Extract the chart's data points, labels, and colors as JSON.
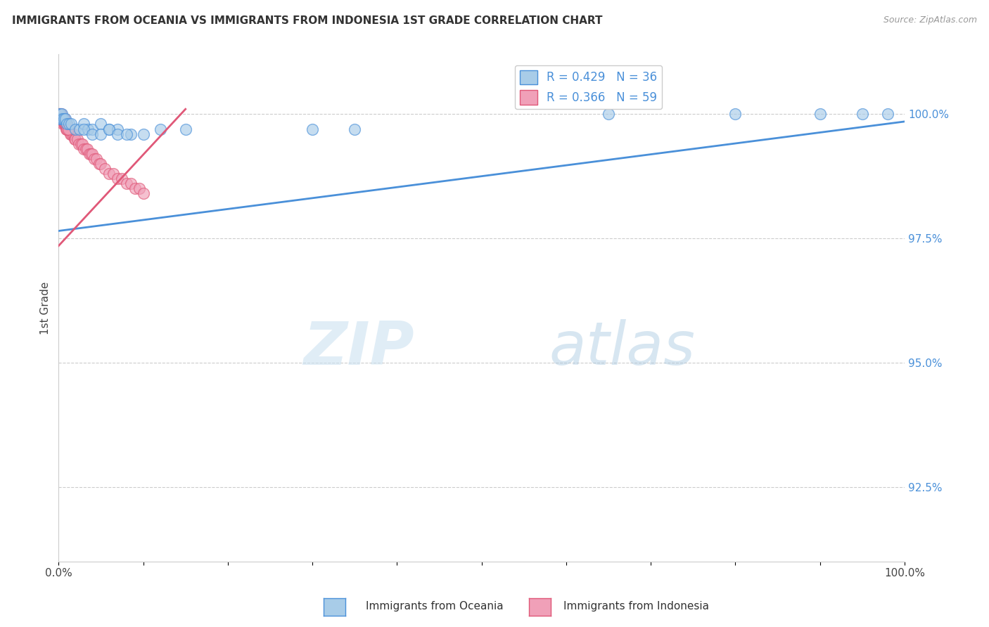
{
  "title": "IMMIGRANTS FROM OCEANIA VS IMMIGRANTS FROM INDONESIA 1ST GRADE CORRELATION CHART",
  "source": "Source: ZipAtlas.com",
  "ylabel": "1st Grade",
  "legend_oceania": "Immigrants from Oceania",
  "legend_indonesia": "Immigrants from Indonesia",
  "R_oceania": 0.429,
  "N_oceania": 36,
  "R_indonesia": 0.366,
  "N_indonesia": 59,
  "color_oceania": "#a8cce8",
  "color_indonesia": "#f0a0b8",
  "trendline_oceania": "#4a90d9",
  "trendline_indonesia": "#e05878",
  "watermark_zip": "ZIP",
  "watermark_atlas": "atlas",
  "xmin": 0.0,
  "xmax": 1.0,
  "ymin": 0.91,
  "ymax": 1.012,
  "yticks": [
    0.925,
    0.95,
    0.975,
    1.0
  ],
  "ytick_labels": [
    "92.5%",
    "95.0%",
    "97.5%",
    "100.0%"
  ],
  "xticks": [
    0.0,
    0.1,
    0.2,
    0.3,
    0.4,
    0.5,
    0.6,
    0.7,
    0.8,
    0.9,
    1.0
  ],
  "xtick_labels": [
    "0.0%",
    "",
    "",
    "",
    "",
    "",
    "",
    "",
    "",
    "",
    "100.0%"
  ],
  "oceania_x": [
    0.001,
    0.001,
    0.002,
    0.003,
    0.004,
    0.005,
    0.006,
    0.008,
    0.01,
    0.012,
    0.015,
    0.02,
    0.025,
    0.03,
    0.035,
    0.04,
    0.05,
    0.06,
    0.07,
    0.085,
    0.1,
    0.12,
    0.15,
    0.03,
    0.04,
    0.05,
    0.06,
    0.07,
    0.08,
    0.3,
    0.35,
    0.65,
    0.8,
    0.9,
    0.95,
    0.98
  ],
  "oceania_y": [
    1.0,
    0.999,
    1.0,
    0.999,
    1.0,
    0.999,
    0.999,
    0.999,
    0.998,
    0.998,
    0.998,
    0.997,
    0.997,
    0.998,
    0.997,
    0.997,
    0.998,
    0.997,
    0.997,
    0.996,
    0.996,
    0.997,
    0.997,
    0.997,
    0.996,
    0.996,
    0.997,
    0.996,
    0.996,
    0.997,
    0.997,
    1.0,
    1.0,
    1.0,
    1.0,
    1.0
  ],
  "indonesia_x": [
    0.0005,
    0.001,
    0.001,
    0.002,
    0.002,
    0.003,
    0.003,
    0.004,
    0.005,
    0.005,
    0.006,
    0.006,
    0.007,
    0.007,
    0.008,
    0.009,
    0.009,
    0.01,
    0.01,
    0.011,
    0.012,
    0.013,
    0.014,
    0.015,
    0.016,
    0.018,
    0.019,
    0.02,
    0.022,
    0.024,
    0.026,
    0.028,
    0.03,
    0.032,
    0.034,
    0.036,
    0.038,
    0.04,
    0.042,
    0.045,
    0.048,
    0.05,
    0.055,
    0.06,
    0.065,
    0.07,
    0.075,
    0.08,
    0.085,
    0.09,
    0.095,
    0.1,
    0.005,
    0.006,
    0.007,
    0.008,
    0.009,
    0.01,
    0.011
  ],
  "indonesia_y": [
    1.0,
    1.0,
    0.999,
    1.0,
    0.999,
    1.0,
    0.999,
    0.999,
    0.999,
    0.998,
    0.999,
    0.998,
    0.999,
    0.998,
    0.998,
    0.998,
    0.997,
    0.998,
    0.997,
    0.997,
    0.997,
    0.997,
    0.996,
    0.996,
    0.996,
    0.996,
    0.995,
    0.995,
    0.995,
    0.994,
    0.994,
    0.994,
    0.993,
    0.993,
    0.993,
    0.992,
    0.992,
    0.992,
    0.991,
    0.991,
    0.99,
    0.99,
    0.989,
    0.988,
    0.988,
    0.987,
    0.987,
    0.986,
    0.986,
    0.985,
    0.985,
    0.984,
    0.999,
    0.999,
    0.998,
    0.998,
    0.998,
    0.997,
    0.997
  ],
  "trendline_oceania_x0": 0.0,
  "trendline_oceania_x1": 1.0,
  "trendline_oceania_y0": 0.9765,
  "trendline_oceania_y1": 0.9985,
  "trendline_indonesia_x0": 0.0,
  "trendline_indonesia_x1": 0.15,
  "trendline_indonesia_y0": 0.9735,
  "trendline_indonesia_y1": 1.001
}
